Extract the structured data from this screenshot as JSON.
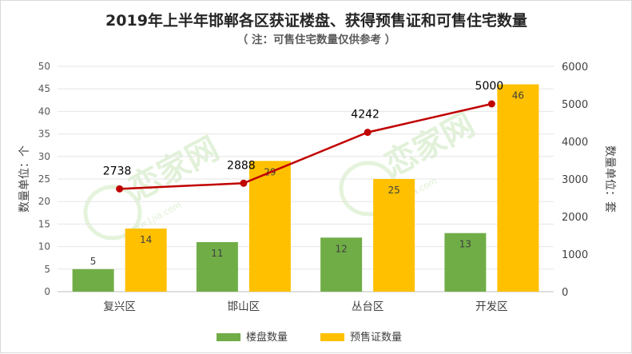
{
  "chart_data": {
    "type": "bar",
    "title": "2019年上半年邯郸各区获证楼盘、获得预售证和可售住宅数量",
    "subtitle": "（ 注：可售住宅数量仅供参考 ）",
    "categories": [
      "复兴区",
      "邯山区",
      "丛台区",
      "开发区"
    ],
    "series": [
      {
        "name": "楼盘数量",
        "type": "bar",
        "axis": "left",
        "color": "#70ad47",
        "values": [
          5,
          11,
          12,
          13
        ]
      },
      {
        "name": "预售证数量",
        "type": "bar",
        "axis": "left",
        "color": "#ffc000",
        "values": [
          14,
          29,
          25,
          46
        ]
      },
      {
        "type": "line",
        "axis": "right",
        "color": "#c00000",
        "values": [
          2738,
          2888,
          4242,
          5000
        ]
      }
    ],
    "ylabel_left": "数量单位：个",
    "ylabel_right": "数量单位：套",
    "ylim_left": [
      0,
      50
    ],
    "ylim_right": [
      0,
      6000
    ],
    "yticks_left": [
      0,
      5,
      10,
      15,
      20,
      25,
      30,
      35,
      40,
      45,
      50
    ],
    "yticks_right": [
      0,
      1000,
      2000,
      3000,
      4000,
      5000,
      6000
    ],
    "grid": true,
    "legend_position": "bottom"
  },
  "watermark": {
    "text": "恋家网",
    "url": "www.Ljia.com",
    "color": "#cfe9c0"
  }
}
